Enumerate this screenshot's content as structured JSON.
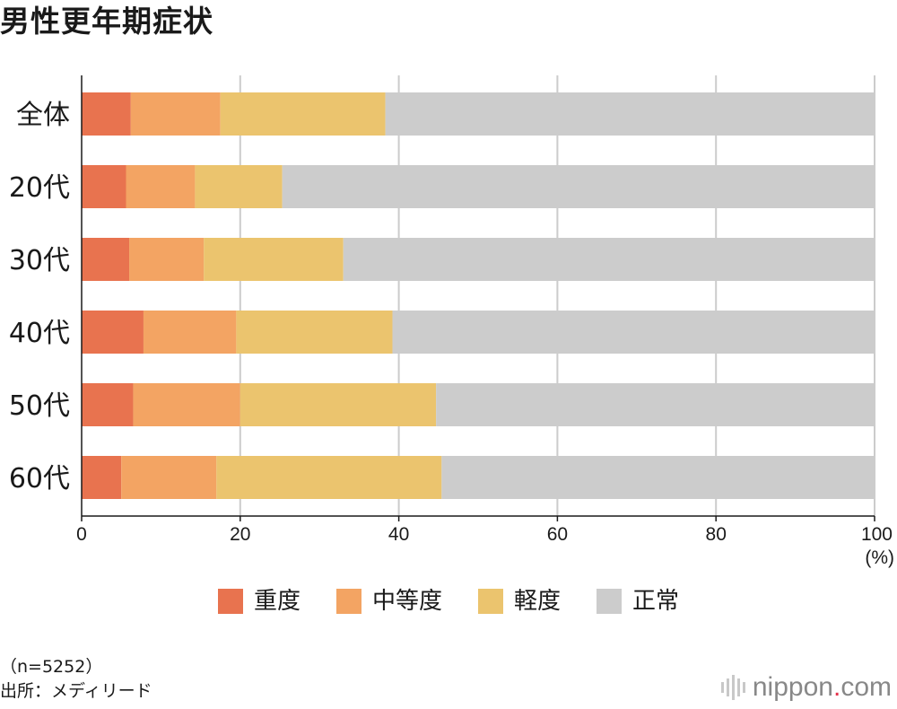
{
  "title": "男性更年期症状",
  "colors": {
    "severe": "#e8734f",
    "moderate": "#f3a463",
    "mild": "#ebc46e",
    "normal": "#cccccc",
    "grid": "#cccccc",
    "axis": "#1a1a1a",
    "logo_dot": "#e5334b"
  },
  "chart_data": {
    "type": "bar",
    "orientation": "horizontal",
    "stacked": true,
    "title": "男性更年期症状",
    "categories": [
      "全体",
      "20代",
      "30代",
      "40代",
      "50代",
      "60代"
    ],
    "series": [
      {
        "name": "重度",
        "color": "#e8734f",
        "values": [
          6.2,
          5.6,
          6.0,
          7.8,
          6.5,
          5.0
        ]
      },
      {
        "name": "中等度",
        "color": "#f3a463",
        "values": [
          11.3,
          8.7,
          9.4,
          11.7,
          13.5,
          12.0
        ]
      },
      {
        "name": "軽度",
        "color": "#ebc46e",
        "values": [
          20.8,
          11.0,
          17.6,
          19.7,
          24.7,
          28.4
        ]
      },
      {
        "name": "正常",
        "color": "#cccccc",
        "values": [
          61.7,
          74.7,
          67.0,
          60.8,
          55.3,
          54.6
        ]
      }
    ],
    "xlim": [
      0,
      100
    ],
    "xticks": [
      "0",
      "20",
      "40",
      "60",
      "80",
      "100"
    ],
    "xticks_values": [
      0,
      20,
      40,
      60,
      80,
      100
    ],
    "xlabel": "(%)",
    "ylabel": "",
    "grid": true,
    "legend_position": "bottom-center"
  },
  "legend": [
    {
      "label": "重度",
      "color": "#e8734f"
    },
    {
      "label": "中等度",
      "color": "#f3a463"
    },
    {
      "label": "軽度",
      "color": "#ebc46e"
    },
    {
      "label": "正常",
      "color": "#cccccc"
    }
  ],
  "footnote": {
    "sample": "（n=5252）",
    "source": "出所：メディリード"
  },
  "logo": {
    "name": "nippon",
    "dot": ".",
    "tld": "com"
  }
}
